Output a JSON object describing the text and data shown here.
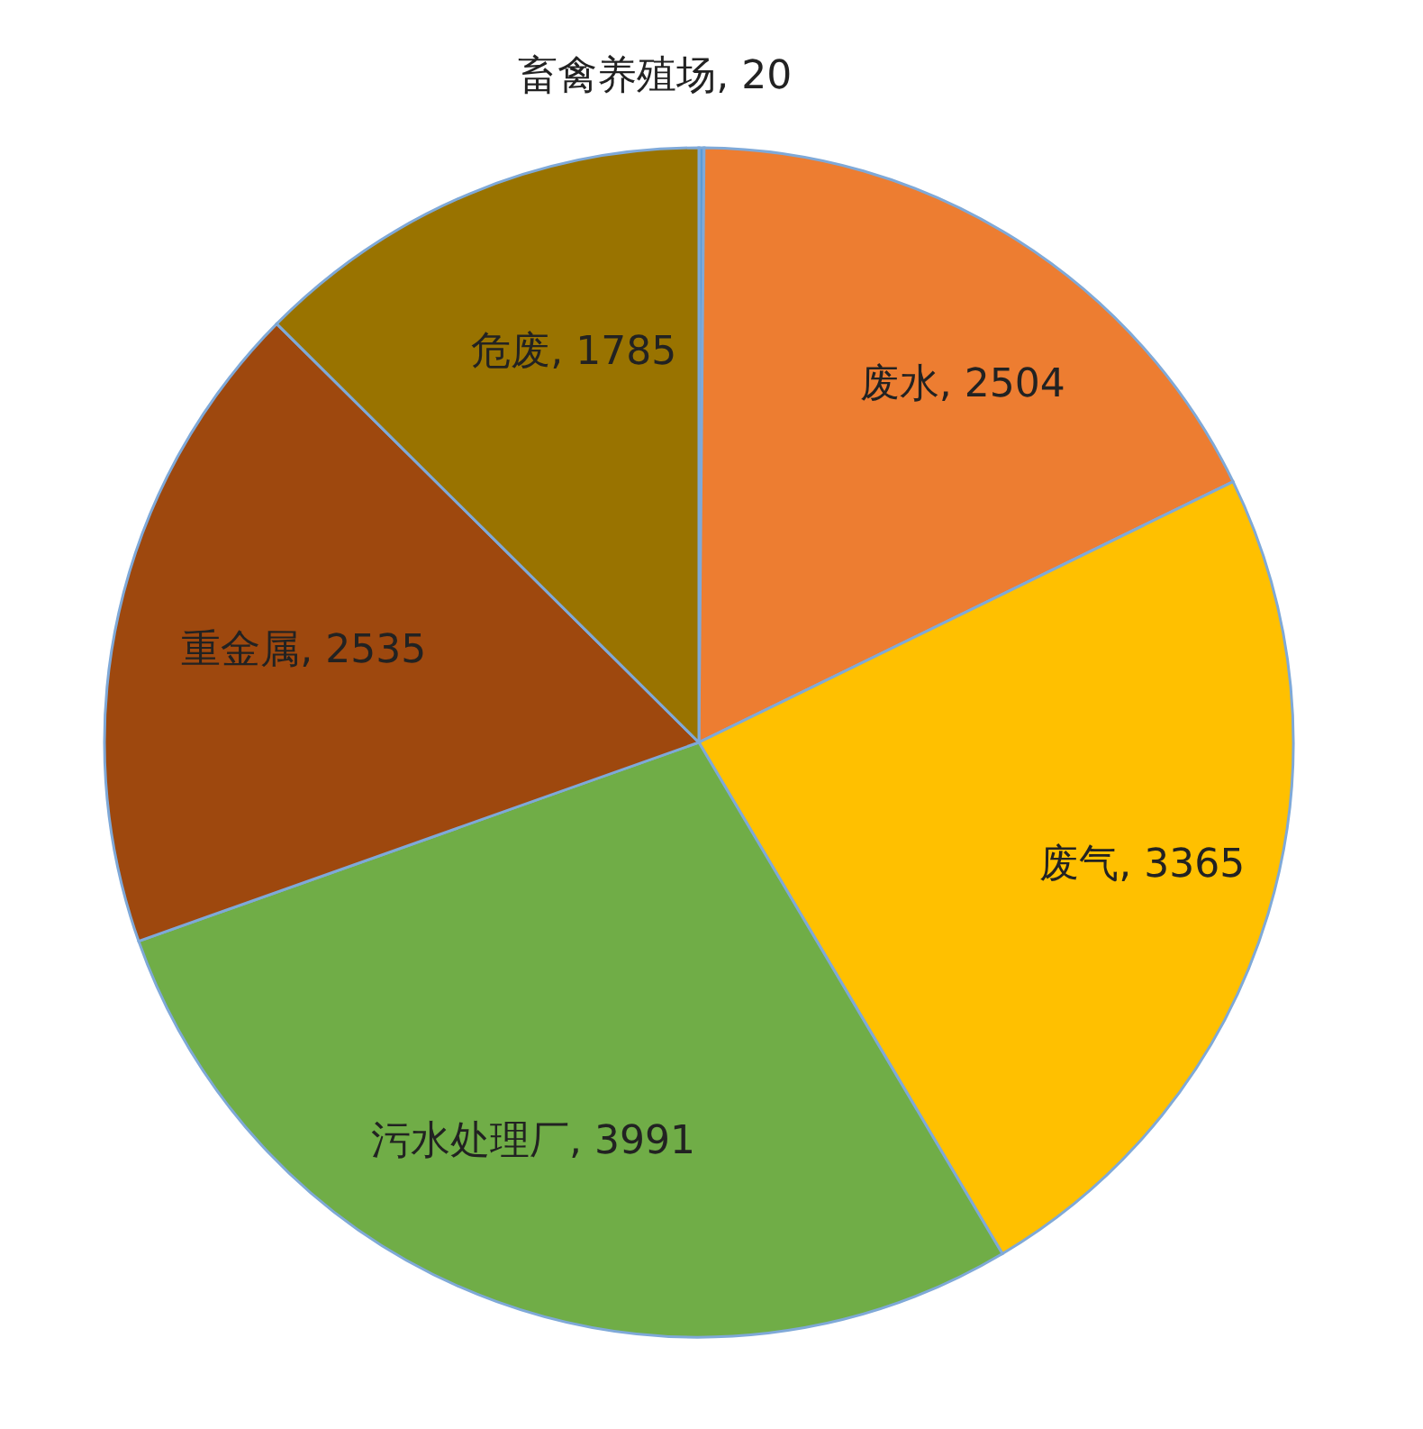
{
  "chart_data": {
    "type": "pie",
    "categories": [
      "畜禽养殖场",
      "废水",
      "废气",
      "污水处理厂",
      "重金属",
      "危废"
    ],
    "values": [
      20,
      2504,
      3365,
      3991,
      2535,
      1785
    ],
    "colors": [
      "#5b9bd5",
      "#ed7d31",
      "#ffc000",
      "#70ad47",
      "#9e480e",
      "#997300"
    ],
    "value_labels": [
      ", 20",
      ", 2504",
      ", 3365",
      ", 3991",
      ", 2535",
      ", 1785"
    ]
  }
}
